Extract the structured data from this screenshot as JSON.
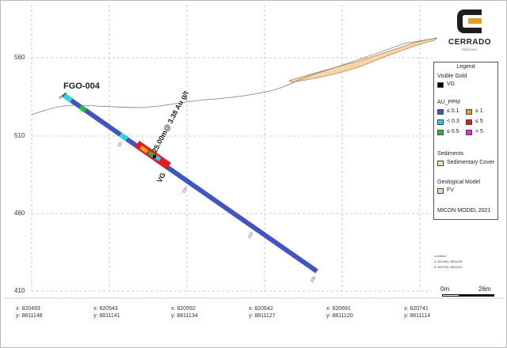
{
  "hole_id": "FGO-004",
  "intercept": "25.00m@ 3.38 Au g/t",
  "vg_label": "VG",
  "depth_ticks": [
    "0",
    "50",
    "100",
    "150",
    "200"
  ],
  "elevation_labels": [
    "560",
    "510",
    "460",
    "410"
  ],
  "x_labels": [
    {
      "x": "x: 820493",
      "y": "y: 8811148"
    },
    {
      "x": "x: 820543",
      "y": "y: 8811141"
    },
    {
      "x": "x: 820592",
      "y": "y: 8811134"
    },
    {
      "x": "x: 820642",
      "y": "y: 8811127"
    },
    {
      "x": "x: 820691",
      "y": "y: 8811120"
    },
    {
      "x": "x: 820741",
      "y": "y: 8811114"
    }
  ],
  "logo": {
    "name": "CERRADO",
    "subtitle": "GOLD INC."
  },
  "legend": {
    "title": "Legend",
    "visible_gold": {
      "heading": "Visible Gold",
      "item": {
        "label": "VG",
        "color": "#000000"
      }
    },
    "au_ppm": {
      "heading": "AU_PPM",
      "items": [
        {
          "label": "≤ 0.1",
          "color": "#3f55c4"
        },
        {
          "label": "≤ 1",
          "color": "#f2a11c"
        },
        {
          "label": "< 0.3",
          "color": "#27d6dc"
        },
        {
          "label": "≤ 5",
          "color": "#e51b1b"
        },
        {
          "label": "≤ 0.5",
          "color": "#1fbf3c"
        },
        {
          "label": "> 5",
          "color": "#e02bd0"
        }
      ]
    },
    "sediments": {
      "heading": "Sediments",
      "item": {
        "label": "Sedimentary Cover",
        "color": "#d6efb4"
      }
    },
    "geo_model": {
      "heading": "Geological Model",
      "item": {
        "label": "FV",
        "color": "#f6d6a8"
      }
    },
    "model_note": "MICON MODEL 2021"
  },
  "location": {
    "title": "Location",
    "a": "A:  820493, 8811148",
    "b": "B:  820752, 8811142"
  },
  "scale": {
    "left": "0m",
    "right": "26m"
  }
}
